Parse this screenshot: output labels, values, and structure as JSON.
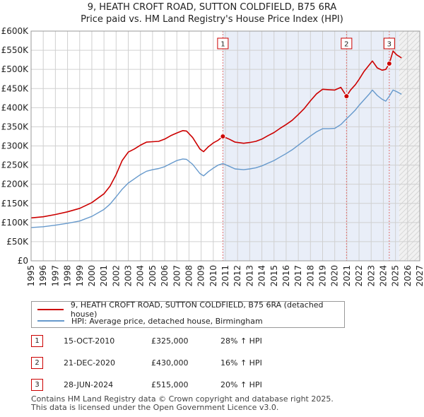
{
  "title_line1": "9, HEATH CROFT ROAD, SUTTON COLDFIELD, B75 6RA",
  "title_line2": "Price paid vs. HM Land Registry's House Price Index (HPI)",
  "chart_data": {
    "type": "line",
    "xlim": [
      1995,
      2027
    ],
    "ylim": [
      0,
      600000
    ],
    "y_ticks": [
      {
        "value": 0,
        "label": "£0"
      },
      {
        "value": 50000,
        "label": "£50K"
      },
      {
        "value": 100000,
        "label": "£100K"
      },
      {
        "value": 150000,
        "label": "£150K"
      },
      {
        "value": 200000,
        "label": "£200K"
      },
      {
        "value": 250000,
        "label": "£250K"
      },
      {
        "value": 300000,
        "label": "£300K"
      },
      {
        "value": 350000,
        "label": "£350K"
      },
      {
        "value": 400000,
        "label": "£400K"
      },
      {
        "value": 450000,
        "label": "£450K"
      },
      {
        "value": 500000,
        "label": "£500K"
      },
      {
        "value": 550000,
        "label": "£550K"
      },
      {
        "value": 600000,
        "label": "£600K"
      }
    ],
    "x_ticks": [
      "1995",
      "1996",
      "1997",
      "1998",
      "1999",
      "2000",
      "2001",
      "2002",
      "2003",
      "2004",
      "2005",
      "2006",
      "2007",
      "2008",
      "2009",
      "2010",
      "2011",
      "2012",
      "2013",
      "2014",
      "2015",
      "2016",
      "2017",
      "2018",
      "2019",
      "2020",
      "2021",
      "2022",
      "2023",
      "2024",
      "2025",
      "2026",
      "2027"
    ],
    "grid": true,
    "shaded_region_start": 2010.79,
    "hatched_region_start": 2025.3,
    "series": [
      {
        "name": "9, HEATH CROFT ROAD, SUTTON COLDFIELD, B75 6RA (detached house)",
        "color": "#cc0000",
        "points": [
          [
            1995.0,
            112000
          ],
          [
            1996.0,
            115000
          ],
          [
            1997.0,
            121000
          ],
          [
            1998.0,
            128000
          ],
          [
            1999.0,
            137000
          ],
          [
            2000.0,
            152000
          ],
          [
            2001.0,
            175000
          ],
          [
            2001.5,
            195000
          ],
          [
            2002.0,
            225000
          ],
          [
            2002.5,
            262000
          ],
          [
            2003.0,
            284000
          ],
          [
            2003.5,
            292000
          ],
          [
            2004.0,
            302000
          ],
          [
            2004.5,
            310000
          ],
          [
            2005.0,
            311000
          ],
          [
            2005.5,
            312000
          ],
          [
            2006.0,
            318000
          ],
          [
            2006.5,
            327000
          ],
          [
            2007.0,
            334000
          ],
          [
            2007.5,
            340000
          ],
          [
            2007.8,
            339000
          ],
          [
            2008.3,
            322000
          ],
          [
            2008.9,
            292000
          ],
          [
            2009.2,
            285000
          ],
          [
            2009.6,
            298000
          ],
          [
            2010.0,
            308000
          ],
          [
            2010.4,
            315000
          ],
          [
            2010.79,
            325000
          ],
          [
            2011.3,
            318000
          ],
          [
            2011.8,
            310000
          ],
          [
            2012.5,
            307000
          ],
          [
            2013.0,
            309000
          ],
          [
            2013.5,
            312000
          ],
          [
            2014.0,
            318000
          ],
          [
            2014.5,
            327000
          ],
          [
            2015.0,
            335000
          ],
          [
            2015.5,
            346000
          ],
          [
            2016.0,
            356000
          ],
          [
            2016.5,
            367000
          ],
          [
            2017.0,
            382000
          ],
          [
            2017.5,
            398000
          ],
          [
            2018.0,
            418000
          ],
          [
            2018.5,
            436000
          ],
          [
            2019.0,
            448000
          ],
          [
            2019.5,
            447000
          ],
          [
            2020.0,
            446000
          ],
          [
            2020.5,
            453000
          ],
          [
            2020.97,
            430000
          ],
          [
            2021.3,
            446000
          ],
          [
            2021.7,
            460000
          ],
          [
            2022.0,
            474000
          ],
          [
            2022.4,
            494000
          ],
          [
            2022.8,
            510000
          ],
          [
            2023.1,
            522000
          ],
          [
            2023.5,
            504000
          ],
          [
            2023.9,
            498000
          ],
          [
            2024.2,
            500000
          ],
          [
            2024.49,
            515000
          ],
          [
            2024.8,
            548000
          ],
          [
            2025.1,
            538000
          ],
          [
            2025.5,
            530000
          ]
        ]
      },
      {
        "name": "HPI: Average price, detached house, Birmingham",
        "color": "#6699cc",
        "points": [
          [
            1995.0,
            87000
          ],
          [
            1996.0,
            89000
          ],
          [
            1997.0,
            93000
          ],
          [
            1998.0,
            98000
          ],
          [
            1999.0,
            104000
          ],
          [
            2000.0,
            116000
          ],
          [
            2001.0,
            134000
          ],
          [
            2001.5,
            148000
          ],
          [
            2002.0,
            167000
          ],
          [
            2002.5,
            187000
          ],
          [
            2003.0,
            203000
          ],
          [
            2003.5,
            214000
          ],
          [
            2004.0,
            225000
          ],
          [
            2004.5,
            234000
          ],
          [
            2005.0,
            238000
          ],
          [
            2005.5,
            241000
          ],
          [
            2006.0,
            246000
          ],
          [
            2006.5,
            254000
          ],
          [
            2007.0,
            262000
          ],
          [
            2007.5,
            266000
          ],
          [
            2007.8,
            265000
          ],
          [
            2008.3,
            252000
          ],
          [
            2008.9,
            228000
          ],
          [
            2009.2,
            222000
          ],
          [
            2009.6,
            233000
          ],
          [
            2010.0,
            242000
          ],
          [
            2010.4,
            250000
          ],
          [
            2010.79,
            254000
          ],
          [
            2011.3,
            247000
          ],
          [
            2011.8,
            240000
          ],
          [
            2012.5,
            238000
          ],
          [
            2013.0,
            240000
          ],
          [
            2013.5,
            243000
          ],
          [
            2014.0,
            248000
          ],
          [
            2014.5,
            255000
          ],
          [
            2015.0,
            262000
          ],
          [
            2015.5,
            271000
          ],
          [
            2016.0,
            280000
          ],
          [
            2016.5,
            290000
          ],
          [
            2017.0,
            302000
          ],
          [
            2017.5,
            314000
          ],
          [
            2018.0,
            326000
          ],
          [
            2018.5,
            337000
          ],
          [
            2019.0,
            345000
          ],
          [
            2019.5,
            345000
          ],
          [
            2020.0,
            346000
          ],
          [
            2020.5,
            356000
          ],
          [
            2020.97,
            371000
          ],
          [
            2021.3,
            381000
          ],
          [
            2021.7,
            394000
          ],
          [
            2022.0,
            406000
          ],
          [
            2022.4,
            420000
          ],
          [
            2022.8,
            434000
          ],
          [
            2023.1,
            446000
          ],
          [
            2023.5,
            432000
          ],
          [
            2023.9,
            422000
          ],
          [
            2024.2,
            417000
          ],
          [
            2024.49,
            430000
          ],
          [
            2024.8,
            446000
          ],
          [
            2025.1,
            442000
          ],
          [
            2025.5,
            435000
          ]
        ]
      }
    ],
    "annotations": [
      {
        "label": "1",
        "x": 2010.79,
        "y": 325000
      },
      {
        "label": "2",
        "x": 2020.97,
        "y": 430000
      },
      {
        "label": "3",
        "x": 2024.49,
        "y": 515000
      }
    ]
  },
  "legend": {
    "property_label": "9, HEATH CROFT ROAD, SUTTON COLDFIELD, B75 6RA (detached house)",
    "hpi_label": "HPI: Average price, detached house, Birmingham",
    "property_color": "#cc0000",
    "hpi_color": "#6699cc"
  },
  "transactions": [
    {
      "num": "1",
      "date": "15-OCT-2010",
      "price": "£325,000",
      "hpi": "28% ↑ HPI"
    },
    {
      "num": "2",
      "date": "21-DEC-2020",
      "price": "£430,000",
      "hpi": "16% ↑ HPI"
    },
    {
      "num": "3",
      "date": "28-JUN-2024",
      "price": "£515,000",
      "hpi": "20% ↑ HPI"
    }
  ],
  "footer_line1": "Contains HM Land Registry data © Crown copyright and database right 2025.",
  "footer_line2": "This data is licensed under the Open Government Licence v3.0."
}
